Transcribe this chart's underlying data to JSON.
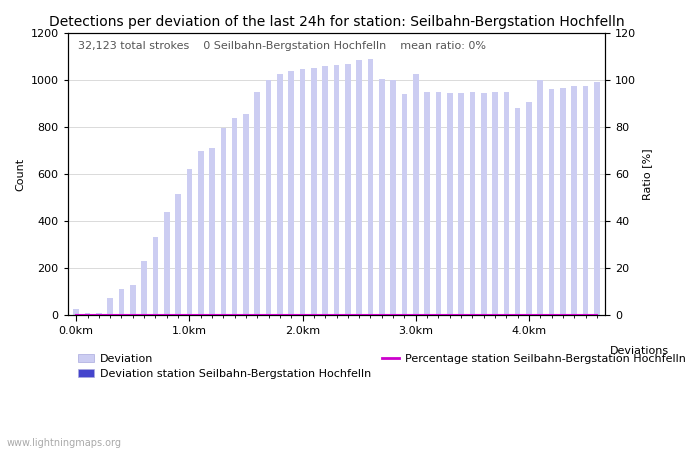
{
  "title": "Detections per deviation of the last 24h for station: Seilbahn-Bergstation Hochfelln",
  "ylabel_left": "Count",
  "ylabel_right": "Ratio [%]",
  "annotation_parts": [
    "32,123 total strokes",
    "0 Seilbahn-Bergstation Hochfelln",
    "mean ratio: 0%"
  ],
  "ylim_left": [
    0,
    1200
  ],
  "ylim_right": [
    0,
    120
  ],
  "ytick_left": [
    0,
    200,
    400,
    600,
    800,
    1000,
    1200
  ],
  "ytick_right": [
    0,
    20,
    40,
    60,
    80,
    100,
    120
  ],
  "bar_color_light": "#cccdf2",
  "bar_color_dark": "#4444cc",
  "line_color": "#cc00cc",
  "background_color": "#ffffff",
  "grid_color": "#cccccc",
  "title_fontsize": 10,
  "axis_label_fontsize": 8,
  "tick_fontsize": 8,
  "annotation_fontsize": 8,
  "watermark": "www.lightningmaps.org",
  "bar_width": 0.5,
  "bar_values_light": [
    25,
    10,
    10,
    75,
    110,
    130,
    230,
    335,
    440,
    515,
    620,
    700,
    710,
    795,
    840,
    855,
    950,
    1000,
    1025,
    1040,
    1045,
    1050,
    1060,
    1065,
    1070,
    1085,
    1090,
    1005,
    1000,
    940,
    1025,
    950,
    950,
    945,
    945,
    950,
    945,
    950,
    950,
    880,
    905,
    1000,
    960,
    965,
    975,
    975,
    990
  ],
  "bar_values_dark": [
    0,
    0,
    0,
    0,
    0,
    0,
    0,
    0,
    0,
    0,
    0,
    0,
    0,
    0,
    0,
    0,
    0,
    0,
    0,
    0,
    0,
    0,
    0,
    0,
    0,
    0,
    0,
    0,
    0,
    0,
    0,
    0,
    0,
    0,
    0,
    0,
    0,
    0,
    0,
    0,
    0,
    0,
    0,
    0,
    0,
    0,
    0
  ],
  "ratio_values": [
    0,
    0,
    0,
    0,
    0,
    0,
    0,
    0,
    0,
    0,
    0,
    0,
    0,
    0,
    0,
    0,
    0,
    0,
    0,
    0,
    0,
    0,
    0,
    0,
    0,
    0,
    0,
    0,
    0,
    0,
    0,
    0,
    0,
    0,
    0,
    0,
    0,
    0,
    0,
    0,
    0,
    0,
    0,
    0,
    0,
    0,
    0
  ],
  "km_per_bar": 0.1,
  "num_bars": 47,
  "xtick_km": [
    0.0,
    1.0,
    2.0,
    3.0,
    4.0
  ],
  "legend_light_label": "Deviation",
  "legend_dark_label": "Deviation station Seilbahn-Bergstation Hochfelln",
  "legend_line_label": "Percentage station Seilbahn-Bergstation Hochfelln",
  "deviations_label": "Deviations"
}
